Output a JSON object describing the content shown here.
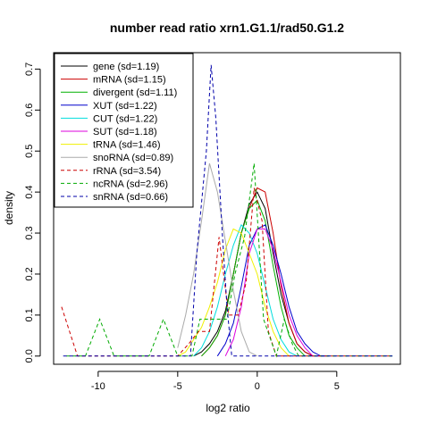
{
  "chart_data": {
    "type": "line",
    "title": "number read ratio xrn1.G1.1/rad50.G1.2",
    "xlabel": "log2 ratio",
    "ylabel": "density",
    "xlim": [
      -12.8,
      9.0
    ],
    "ylim": [
      -0.02,
      0.74
    ],
    "xticks": [
      -10,
      -5,
      0,
      5
    ],
    "yticks": [
      0.0,
      0.1,
      0.2,
      0.3,
      0.4,
      0.5,
      0.6,
      0.7
    ],
    "legend_position": "top-left",
    "series": [
      {
        "name": "gene (sd=1.19)",
        "color": "#000000",
        "dash": false,
        "points": [
          [
            -4,
            0
          ],
          [
            -3.5,
            0.01
          ],
          [
            -3,
            0.03
          ],
          [
            -2.5,
            0.06
          ],
          [
            -2,
            0.11
          ],
          [
            -1.5,
            0.2
          ],
          [
            -1,
            0.3
          ],
          [
            -0.5,
            0.37
          ],
          [
            0,
            0.4
          ],
          [
            0.5,
            0.36
          ],
          [
            1,
            0.25
          ],
          [
            1.5,
            0.15
          ],
          [
            2,
            0.08
          ],
          [
            2.5,
            0.03
          ],
          [
            3,
            0.01
          ],
          [
            3.5,
            0
          ]
        ]
      },
      {
        "name": "mRNA (sd=1.15)",
        "color": "#cc0000",
        "dash": false,
        "points": [
          [
            -3.5,
            0
          ],
          [
            -3,
            0.02
          ],
          [
            -2.5,
            0.05
          ],
          [
            -2,
            0.1
          ],
          [
            -1.5,
            0.2
          ],
          [
            -1,
            0.3
          ],
          [
            -0.5,
            0.36
          ],
          [
            0,
            0.41
          ],
          [
            0.5,
            0.4
          ],
          [
            1,
            0.3
          ],
          [
            1.5,
            0.17
          ],
          [
            2,
            0.08
          ],
          [
            2.5,
            0.03
          ],
          [
            3,
            0.01
          ],
          [
            3.5,
            0
          ]
        ]
      },
      {
        "name": "divergent (sd=1.11)",
        "color": "#00b000",
        "dash": false,
        "points": [
          [
            -3.5,
            0
          ],
          [
            -3,
            0.02
          ],
          [
            -2.5,
            0.05
          ],
          [
            -2,
            0.1
          ],
          [
            -1.5,
            0.2
          ],
          [
            -1,
            0.3
          ],
          [
            -0.5,
            0.36
          ],
          [
            0,
            0.38
          ],
          [
            0.5,
            0.33
          ],
          [
            1,
            0.22
          ],
          [
            1.5,
            0.12
          ],
          [
            2,
            0.05
          ],
          [
            2.5,
            0.02
          ],
          [
            3,
            0
          ]
        ]
      },
      {
        "name": "XUT (sd=1.22)",
        "color": "#0000cc",
        "dash": false,
        "points": [
          [
            -2.5,
            0
          ],
          [
            -2,
            0.03
          ],
          [
            -1.5,
            0.08
          ],
          [
            -1,
            0.17
          ],
          [
            -0.5,
            0.27
          ],
          [
            0,
            0.31
          ],
          [
            0.5,
            0.32
          ],
          [
            1,
            0.27
          ],
          [
            1.5,
            0.2
          ],
          [
            2,
            0.12
          ],
          [
            2.5,
            0.06
          ],
          [
            3,
            0.03
          ],
          [
            3.5,
            0.01
          ],
          [
            4,
            0
          ],
          [
            4.5,
            0
          ]
        ]
      },
      {
        "name": "CUT (sd=1.22)",
        "color": "#00dddd",
        "dash": false,
        "points": [
          [
            -4,
            0
          ],
          [
            -3.5,
            0.02
          ],
          [
            -3,
            0.06
          ],
          [
            -2.5,
            0.12
          ],
          [
            -2,
            0.2
          ],
          [
            -1.5,
            0.27
          ],
          [
            -1,
            0.32
          ],
          [
            -0.5,
            0.3
          ],
          [
            0,
            0.25
          ],
          [
            0.5,
            0.17
          ],
          [
            1,
            0.09
          ],
          [
            1.5,
            0.04
          ],
          [
            2,
            0.01
          ],
          [
            2.5,
            0
          ]
        ]
      },
      {
        "name": "SUT (sd=1.18)",
        "color": "#dd00dd",
        "dash": false,
        "points": [
          [
            -2,
            0
          ],
          [
            -1.5,
            0.04
          ],
          [
            -1,
            0.12
          ],
          [
            -0.5,
            0.25
          ],
          [
            0,
            0.31
          ],
          [
            0.5,
            0.31
          ],
          [
            1,
            0.26
          ],
          [
            1.5,
            0.18
          ],
          [
            2,
            0.1
          ],
          [
            2.5,
            0.05
          ],
          [
            3,
            0.02
          ],
          [
            3.5,
            0
          ],
          [
            4,
            0
          ]
        ]
      },
      {
        "name": "tRNA (sd=1.46)",
        "color": "#f0f000",
        "dash": false,
        "points": [
          [
            -5,
            0
          ],
          [
            -4.5,
            0.01
          ],
          [
            -4,
            0.04
          ],
          [
            -3.5,
            0.07
          ],
          [
            -3,
            0.12
          ],
          [
            -2.5,
            0.18
          ],
          [
            -2,
            0.26
          ],
          [
            -1.5,
            0.31
          ],
          [
            -1,
            0.3
          ],
          [
            -0.5,
            0.25
          ],
          [
            0,
            0.2
          ],
          [
            0.5,
            0.12
          ],
          [
            1,
            0.06
          ],
          [
            1.5,
            0.02
          ],
          [
            2,
            0
          ]
        ]
      },
      {
        "name": "snoRNA (sd=0.89)",
        "color": "#aaaaaa",
        "dash": false,
        "points": [
          [
            -5,
            0.02
          ],
          [
            -4.5,
            0.1
          ],
          [
            -4,
            0.2
          ],
          [
            -3.5,
            0.33
          ],
          [
            -3,
            0.47
          ],
          [
            -2.5,
            0.4
          ],
          [
            -2,
            0.28
          ],
          [
            -1.5,
            0.16
          ],
          [
            -1,
            0.06
          ],
          [
            -0.5,
            0.01
          ],
          [
            0,
            0
          ]
        ]
      },
      {
        "name": "rRNA (sd=3.54)",
        "color": "#cc0000",
        "dash": true,
        "points": [
          [
            -12.3,
            0.12
          ],
          [
            -11.3,
            0
          ],
          [
            -5,
            0
          ],
          [
            -4.3,
            0.03
          ],
          [
            -3.7,
            0.06
          ],
          [
            -3,
            0.06
          ],
          [
            -2.4,
            0.29
          ],
          [
            -1.8,
            0.1
          ],
          [
            -1.2,
            0.1
          ],
          [
            -0.7,
            0.18
          ],
          [
            -0.2,
            0.41
          ],
          [
            0.3,
            0.33
          ],
          [
            0.7,
            0.06
          ],
          [
            1.2,
            0
          ],
          [
            8.5,
            0
          ]
        ]
      },
      {
        "name": "ncRNA (sd=2.96)",
        "color": "#00aa00",
        "dash": true,
        "points": [
          [
            -12,
            0
          ],
          [
            -10.8,
            0
          ],
          [
            -9.9,
            0.09
          ],
          [
            -9,
            0
          ],
          [
            -6.8,
            0
          ],
          [
            -5.9,
            0.09
          ],
          [
            -5,
            0
          ],
          [
            -4.1,
            0
          ],
          [
            -3.6,
            0.09
          ],
          [
            -3.1,
            0.09
          ],
          [
            -2.5,
            0.09
          ],
          [
            -1.9,
            0.09
          ],
          [
            -1.4,
            0.2
          ],
          [
            -0.8,
            0.29
          ],
          [
            -0.2,
            0.47
          ],
          [
            0.4,
            0.09
          ],
          [
            1.2,
            0
          ],
          [
            1.7,
            0.09
          ],
          [
            2.2,
            0.03
          ],
          [
            2.6,
            0
          ],
          [
            8.5,
            0
          ]
        ]
      },
      {
        "name": "snRNA (sd=0.66)",
        "color": "#0000aa",
        "dash": true,
        "points": [
          [
            -12.2,
            0
          ],
          [
            -4.2,
            0
          ],
          [
            -3.8,
            0.25
          ],
          [
            -3.2,
            0.5
          ],
          [
            -2.9,
            0.71
          ],
          [
            -2.6,
            0.58
          ],
          [
            -2.2,
            0.3
          ],
          [
            -1.9,
            0.12
          ],
          [
            -1.6,
            0
          ],
          [
            8.5,
            0
          ]
        ]
      }
    ]
  }
}
